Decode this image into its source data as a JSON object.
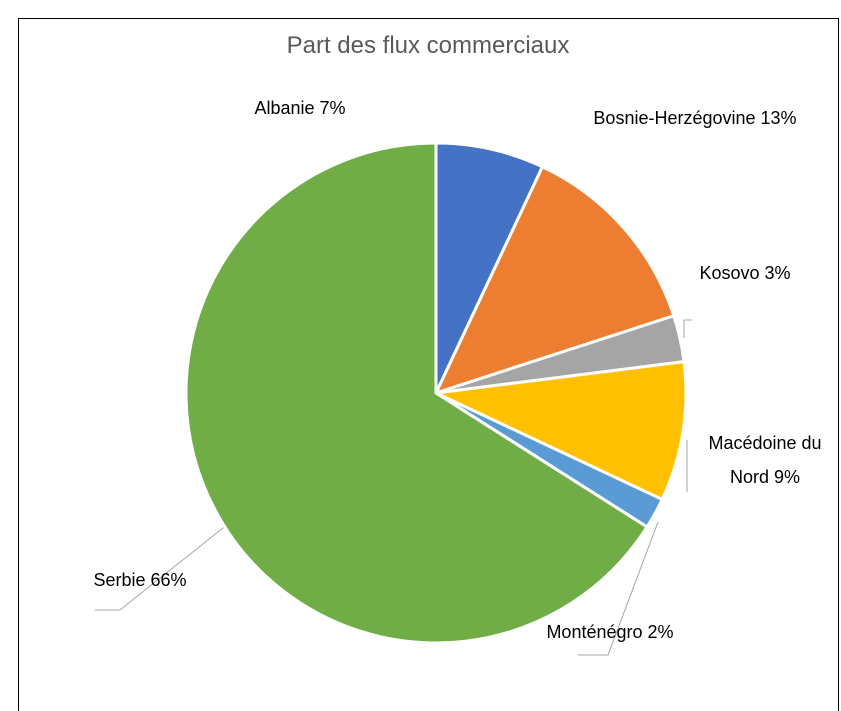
{
  "chart_data": {
    "type": "pie",
    "title": "Part des flux commerciaux",
    "categories": [
      "Albanie",
      "Bosnie-Herzégovine",
      "Kosovo",
      "Macédoine du Nord",
      "Monténégro",
      "Serbie"
    ],
    "values": [
      7,
      13,
      3,
      9,
      2,
      66
    ],
    "value_labels": [
      "7%",
      "13%",
      "3%",
      "9%",
      "2%",
      "66%"
    ],
    "colors": [
      "#4472c4",
      "#ed7d31",
      "#a5a5a5",
      "#ffc000",
      "#5b9bd5",
      "#70ad47"
    ]
  }
}
